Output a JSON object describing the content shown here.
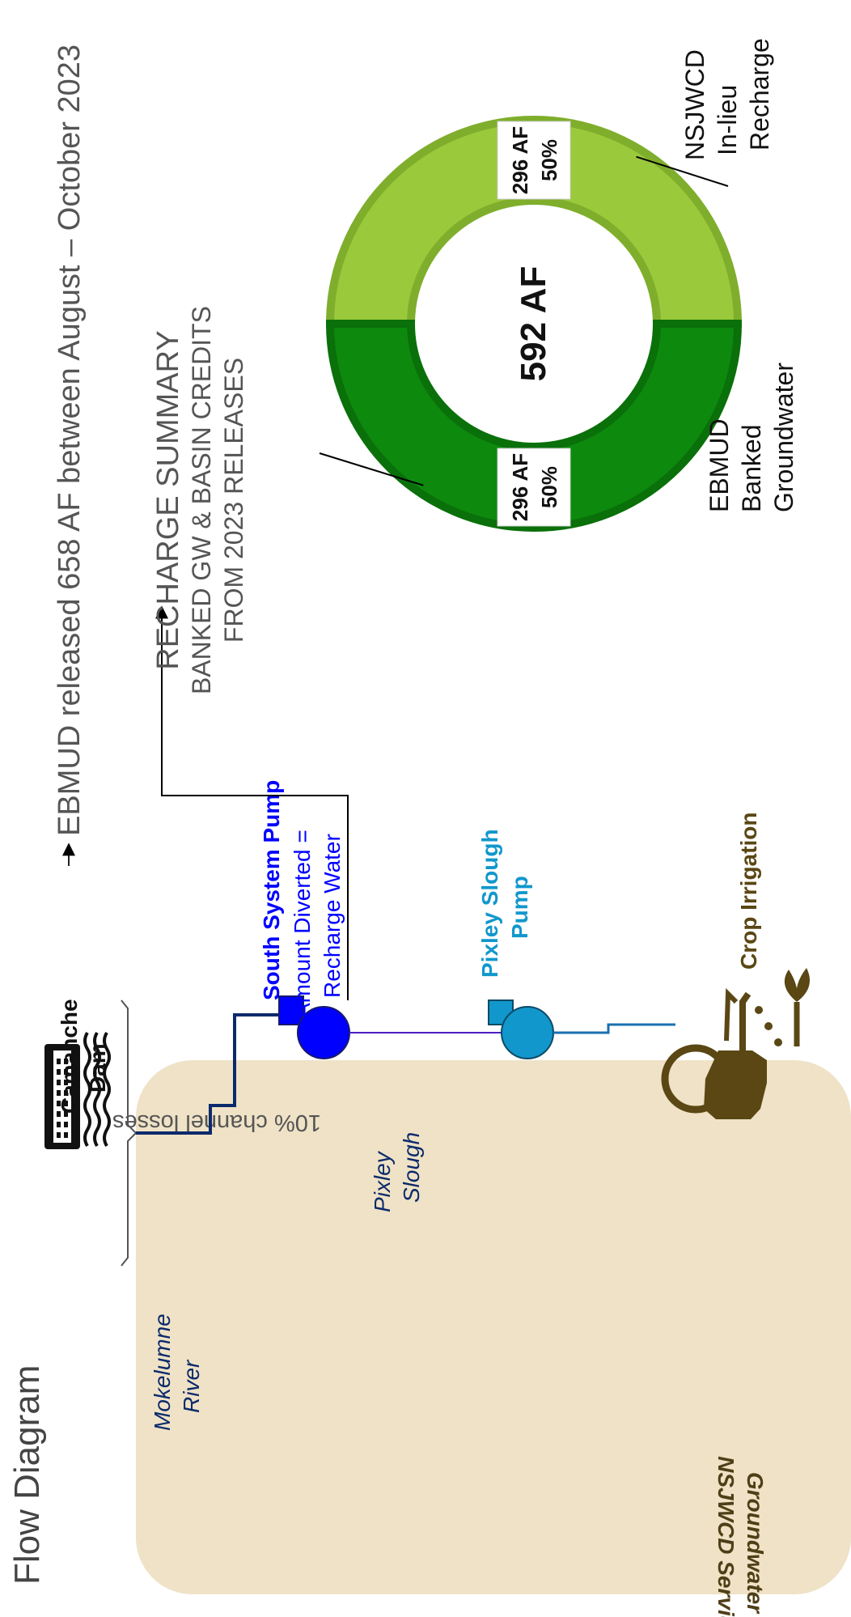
{
  "page_title": "Flow Diagram",
  "headline": {
    "source_label": "Camanche Dam",
    "text": "EBMUD released 658 AF between August – October 2023"
  },
  "service_area": {
    "label_line1": "Groundwater Basin",
    "label_line2": "NSJWCD Service Area"
  },
  "flow": {
    "channel_losses": "10% channel losses",
    "river_line1": "Mokelumne",
    "river_line2": "River",
    "slough_line1": "Pixley",
    "slough_line2": "Slough",
    "south_pump_title": "South System Pump",
    "south_pump_line1": "Amount Diverted =",
    "south_pump_line2": "Recharge Water",
    "pixley_pump_line1": "Pixley Slough",
    "pixley_pump_line2": "Pump",
    "crop_irrigation": "Crop Irrigation"
  },
  "summary": {
    "title": "RECHARGE SUMMARY",
    "line1": "BANKED GW & BASIN CREDITS",
    "line2": "FROM 2023 RELEASES"
  },
  "chart_data": {
    "type": "pie",
    "donut": true,
    "center_label": "592 AF",
    "slices": [
      {
        "label_lines": [
          "NSJWCD",
          "In-lieu",
          "Recharge"
        ],
        "value": 296,
        "value_label": "296 AF",
        "percent_label": "50%",
        "color": "#9ac93c",
        "edge": "#7fae2c"
      },
      {
        "label_lines": [
          "EBMUD",
          "Banked",
          "Groundwater"
        ],
        "value": 296,
        "value_label": "296 AF",
        "percent_label": "50%",
        "color": "#0d8a0d",
        "edge": "#0a700a"
      }
    ]
  },
  "colors": {
    "area_fill": "#efe2c6",
    "text_gray": "#555555",
    "brown": "#4f3f17",
    "river_navy": "#0b2a6b",
    "pump_blue": "#0000ff",
    "pump_teal": "#1197cc",
    "slough_purple": "#4b1fc4"
  }
}
